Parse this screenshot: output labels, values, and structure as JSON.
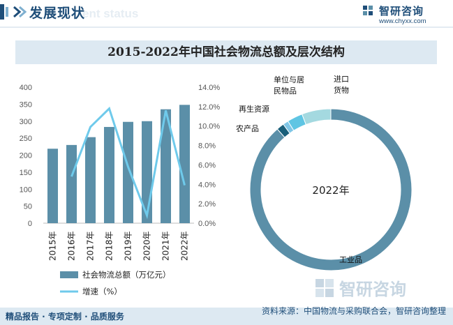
{
  "header": {
    "title": "发展现状",
    "ghost_text": "ent status",
    "brand_name": "智研咨询",
    "brand_url": "www.chyxx.com"
  },
  "title": "2015-2022年中国社会物流总额及层次结构",
  "chart_data": [
    {
      "type": "bar",
      "categories": [
        "2015年",
        "2016年",
        "2017年",
        "2018年",
        "2019年",
        "2020年",
        "2021年",
        "2022年"
      ],
      "series": [
        {
          "name": "社会物流总额（万亿元）",
          "type": "bar",
          "axis": "left",
          "values": [
            219,
            230,
            253,
            283,
            298,
            300,
            335,
            348
          ]
        },
        {
          "name": "增速（%）",
          "type": "line",
          "axis": "right",
          "values": [
            null,
            4.8,
            9.9,
            11.8,
            5.8,
            0.8,
            11.6,
            3.9
          ]
        }
      ],
      "ylim": [
        0,
        400
      ],
      "y_ticks": [
        "0",
        "50",
        "100",
        "150",
        "200",
        "250",
        "300",
        "350",
        "400"
      ],
      "y2lim": [
        0,
        14
      ],
      "y2_ticks": [
        "0.0%",
        "2.0%",
        "4.0%",
        "6.0%",
        "8.0%",
        "10.0%",
        "12.0%",
        "14.0%"
      ],
      "legend_position": "bottom",
      "grid": false
    },
    {
      "type": "pie",
      "style": "donut",
      "center_label": "2022年",
      "labels": [
        "工业品",
        "农产品",
        "再生资源",
        "单位与居民物品",
        "进口货物"
      ],
      "label_lines": [
        [
          "工业品"
        ],
        [
          "农产品"
        ],
        [
          "再生资源"
        ],
        [
          "单位与居",
          "民物品"
        ],
        [
          "进口",
          "货物"
        ]
      ],
      "values": [
        88.5,
        1.5,
        1.1,
        3.1,
        5.8
      ],
      "colors": [
        "#5b8fa8",
        "#1a5f7a",
        "#7fc6e6",
        "#5fc5e3",
        "#a4d9e0"
      ]
    }
  ],
  "colors": {
    "bar": "#5b8fa8",
    "line": "#6fcaeb",
    "header_title": "#1f4e79",
    "title_bg": "#dde9f2"
  },
  "footer": {
    "left": "精品报告 · 专项定制 · 品质服务",
    "right": "资料来源：中国物流与采购联合会，智研咨询整理"
  },
  "watermark_text": "智研咨询"
}
